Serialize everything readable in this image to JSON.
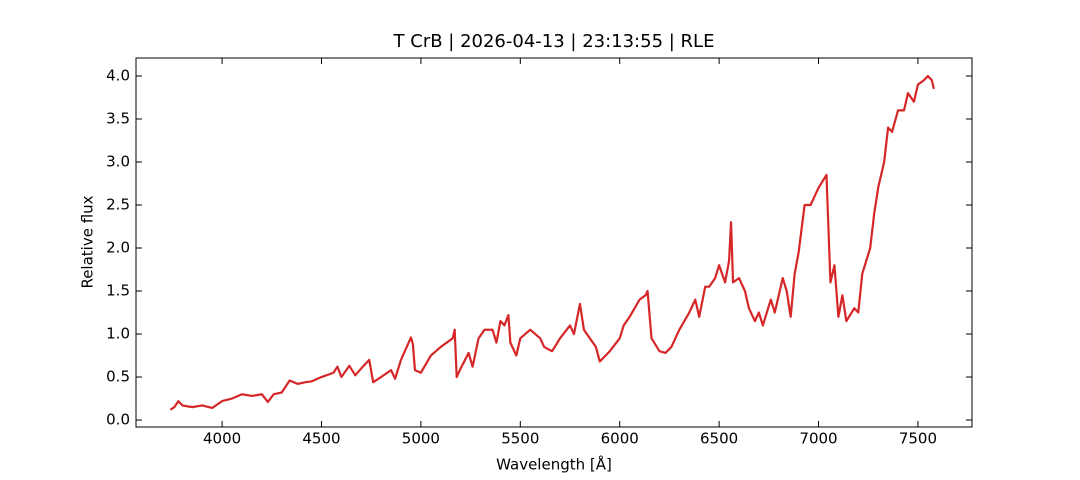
{
  "chart_data": {
    "type": "line",
    "title": "T CrB | 2026-04-13 | 23:13:55 | RLE",
    "xlabel": "Wavelength [Å]",
    "ylabel": "Relative flux",
    "color": "#d62728",
    "x": [
      3740,
      3760,
      3780,
      3800,
      3850,
      3900,
      3950,
      4000,
      4050,
      4100,
      4150,
      4200,
      4230,
      4260,
      4300,
      4340,
      4380,
      4420,
      4450,
      4500,
      4560,
      4580,
      4600,
      4640,
      4670,
      4700,
      4740,
      4760,
      4800,
      4850,
      4870,
      4900,
      4950,
      4960,
      4970,
      5000,
      5050,
      5100,
      5160,
      5170,
      5180,
      5200,
      5240,
      5260,
      5290,
      5320,
      5360,
      5380,
      5400,
      5420,
      5440,
      5450,
      5480,
      5500,
      5550,
      5600,
      5620,
      5660,
      5700,
      5750,
      5770,
      5800,
      5820,
      5850,
      5880,
      5900,
      5950,
      6000,
      6020,
      6050,
      6100,
      6130,
      6140,
      6160,
      6200,
      6230,
      6260,
      6300,
      6350,
      6380,
      6400,
      6430,
      6450,
      6480,
      6500,
      6530,
      6550,
      6560,
      6570,
      6600,
      6630,
      6650,
      6680,
      6700,
      6720,
      6760,
      6780,
      6800,
      6820,
      6840,
      6860,
      6880,
      6900,
      6930,
      6960,
      7000,
      7040,
      7060,
      7080,
      7100,
      7120,
      7140,
      7180,
      7200,
      7220,
      7260,
      7280,
      7300,
      7330,
      7350,
      7370,
      7400,
      7430,
      7450,
      7480,
      7500,
      7530,
      7550,
      7570,
      7580
    ],
    "values": [
      0.12,
      0.15,
      0.22,
      0.17,
      0.15,
      0.17,
      0.14,
      0.22,
      0.25,
      0.3,
      0.28,
      0.3,
      0.21,
      0.3,
      0.32,
      0.46,
      0.42,
      0.44,
      0.45,
      0.5,
      0.55,
      0.62,
      0.5,
      0.63,
      0.52,
      0.6,
      0.7,
      0.44,
      0.5,
      0.58,
      0.48,
      0.7,
      0.96,
      0.88,
      0.58,
      0.55,
      0.75,
      0.85,
      0.95,
      1.05,
      0.5,
      0.6,
      0.78,
      0.62,
      0.95,
      1.05,
      1.05,
      0.9,
      1.15,
      1.1,
      1.22,
      0.9,
      0.75,
      0.95,
      1.05,
      0.95,
      0.85,
      0.8,
      0.95,
      1.1,
      1.0,
      1.35,
      1.05,
      0.95,
      0.85,
      0.68,
      0.8,
      0.95,
      1.1,
      1.2,
      1.4,
      1.45,
      1.5,
      0.95,
      0.8,
      0.78,
      0.85,
      1.05,
      1.25,
      1.4,
      1.2,
      1.55,
      1.55,
      1.65,
      1.8,
      1.6,
      1.85,
      2.3,
      1.6,
      1.65,
      1.5,
      1.3,
      1.15,
      1.25,
      1.1,
      1.4,
      1.25,
      1.45,
      1.65,
      1.5,
      1.2,
      1.7,
      1.95,
      2.5,
      2.5,
      2.7,
      2.85,
      1.6,
      1.8,
      1.2,
      1.45,
      1.15,
      1.3,
      1.25,
      1.7,
      2.0,
      2.4,
      2.7,
      3.0,
      3.4,
      3.35,
      3.6,
      3.6,
      3.8,
      3.7,
      3.9,
      3.95,
      4.0,
      3.95,
      3.85
    ],
    "xlim": [
      3567,
      7772
    ],
    "ylim": [
      -0.081,
      4.209
    ],
    "xticks": [
      4000,
      4500,
      5000,
      5500,
      6000,
      6500,
      7000,
      7500
    ],
    "yticks": [
      {
        "value": 0,
        "label": "0.0"
      },
      {
        "value": 0.5,
        "label": "0.5"
      },
      {
        "value": 1,
        "label": "1.0"
      },
      {
        "value": 1.5,
        "label": "1.5"
      },
      {
        "value": 2,
        "label": "2.0"
      },
      {
        "value": 2.5,
        "label": "2.5"
      },
      {
        "value": 3,
        "label": "3.0"
      },
      {
        "value": 3.5,
        "label": "3.5"
      },
      {
        "value": 4,
        "label": "4.0"
      }
    ]
  }
}
